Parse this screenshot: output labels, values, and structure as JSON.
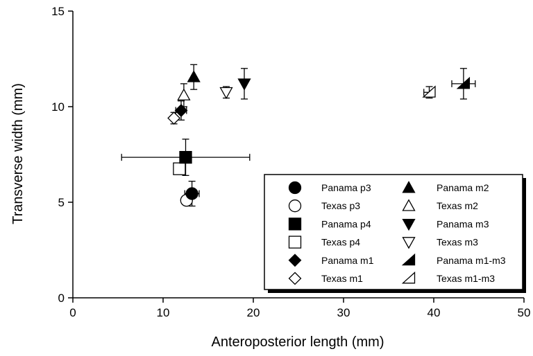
{
  "chart_data": {
    "type": "scatter",
    "xlabel": "Anteroposterior length (mm)",
    "ylabel": "Transverse width (mm)",
    "xlim": [
      0,
      50
    ],
    "ylim": [
      0,
      15
    ],
    "xticks": [
      0,
      10,
      20,
      30,
      40,
      50
    ],
    "yticks": [
      0,
      5,
      10,
      15
    ],
    "grid": false,
    "legend_position": "bottom-right",
    "series": [
      {
        "name": "Panama p3",
        "marker": "circle",
        "fill": "filled",
        "x": 13.2,
        "y": 5.45,
        "xerr": 0.8,
        "yerr": 0.65
      },
      {
        "name": "Texas p3",
        "marker": "circle",
        "fill": "open",
        "x": 12.6,
        "y": 5.1,
        "xerr": 0,
        "yerr": 0
      },
      {
        "name": "Panama p4",
        "marker": "square",
        "fill": "filled",
        "x": 12.5,
        "y": 7.35,
        "xerr": 7.1,
        "yerr": 0.95
      },
      {
        "name": "Texas p4",
        "marker": "square",
        "fill": "open",
        "x": 11.8,
        "y": 6.75,
        "xerr": 0,
        "yerr": 0
      },
      {
        "name": "Panama m1",
        "marker": "diamond",
        "fill": "filled",
        "x": 12.0,
        "y": 9.8,
        "xerr": 0.6,
        "yerr": 0.5
      },
      {
        "name": "Texas m1",
        "marker": "diamond",
        "fill": "open",
        "x": 11.2,
        "y": 9.4,
        "xerr": 0,
        "yerr": 0.3
      },
      {
        "name": "Panama m2",
        "marker": "triangle-up",
        "fill": "filled",
        "x": 13.4,
        "y": 11.55,
        "xerr": 0,
        "yerr": 0.65
      },
      {
        "name": "Texas m2",
        "marker": "triangle-up",
        "fill": "open",
        "x": 12.3,
        "y": 10.6,
        "xerr": 0,
        "yerr": 0.6
      },
      {
        "name": "Panama m3",
        "marker": "triangle-down",
        "fill": "filled",
        "x": 19.0,
        "y": 11.2,
        "xerr": 0,
        "yerr": 0.8
      },
      {
        "name": "Texas m3",
        "marker": "triangle-down",
        "fill": "open",
        "x": 17.0,
        "y": 10.75,
        "xerr": 0,
        "yerr": 0.3
      },
      {
        "name": "Panama m1-m3",
        "marker": "half-triangle",
        "fill": "filled",
        "x": 43.3,
        "y": 11.2,
        "xerr": 1.3,
        "yerr": 0.8
      },
      {
        "name": "Texas m1-m3",
        "marker": "half-triangle",
        "fill": "open",
        "x": 39.5,
        "y": 10.75,
        "xerr": 0.6,
        "yerr": 0.3
      }
    ]
  }
}
